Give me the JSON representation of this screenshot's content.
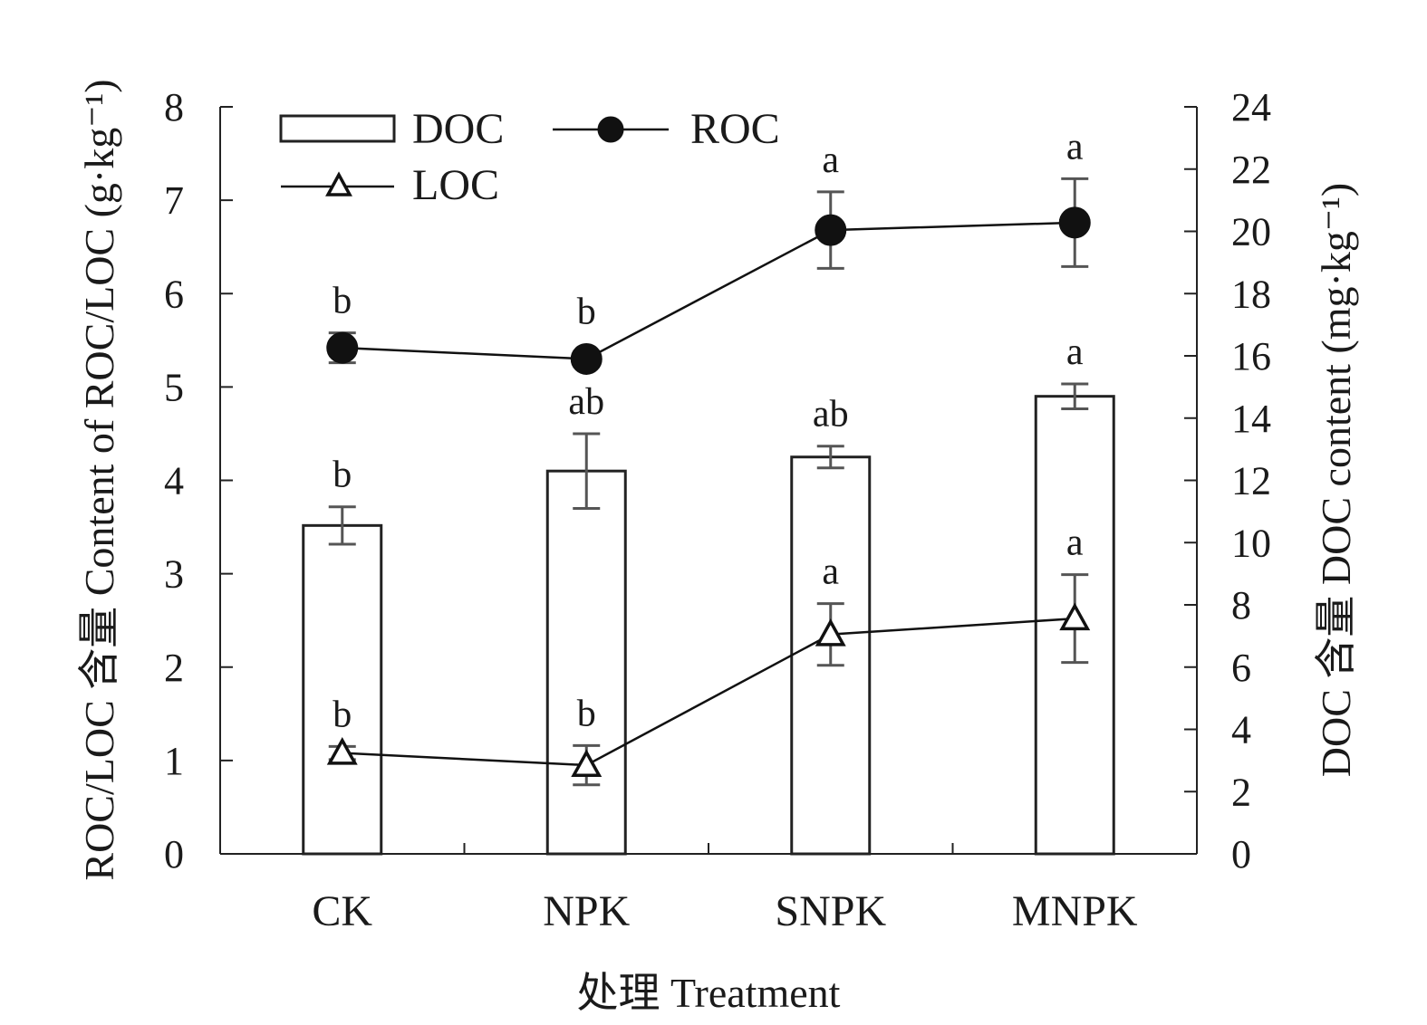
{
  "chart_data": {
    "type": "bar",
    "categories": [
      "CK",
      "NPK",
      "SNPK",
      "MNPK"
    ],
    "xlabel": "处理 Treatment",
    "ylabel_left": "ROC/LOC 含量 Content of  ROC/LOC (g·kg⁻¹)",
    "ylabel_right": "DOC 含量 DOC content (mg·kg⁻¹)",
    "ylim_left": [
      0,
      8
    ],
    "yticks_left": [
      "0",
      "1",
      "2",
      "3",
      "4",
      "5",
      "6",
      "7",
      "8"
    ],
    "ylim_right": [
      0,
      24
    ],
    "yticks_right": [
      "0",
      "2",
      "4",
      "6",
      "8",
      "10",
      "12",
      "14",
      "16",
      "18",
      "20",
      "22",
      "24"
    ],
    "legend_position": "top-left",
    "series": [
      {
        "name": "DOC",
        "kind": "bar",
        "axis": "right",
        "values": [
          10.55,
          12.3,
          12.75,
          14.7
        ],
        "errors": [
          0.6,
          1.2,
          0.35,
          0.4
        ],
        "labels": [
          "b",
          "ab",
          "ab",
          "a"
        ]
      },
      {
        "name": "ROC",
        "kind": "line",
        "marker": "filled-circle",
        "axis": "left",
        "values": [
          5.42,
          5.3,
          6.68,
          6.76
        ],
        "errors": [
          0.16,
          0.0,
          0.41,
          0.47
        ],
        "labels": [
          "b",
          "b",
          "a",
          "a"
        ]
      },
      {
        "name": "LOC",
        "kind": "line",
        "marker": "open-triangle",
        "axis": "left",
        "values": [
          1.08,
          0.95,
          2.35,
          2.52
        ],
        "errors": [
          0.07,
          0.21,
          0.33,
          0.47
        ],
        "labels": [
          "b",
          "b",
          "a",
          "a"
        ]
      }
    ]
  }
}
